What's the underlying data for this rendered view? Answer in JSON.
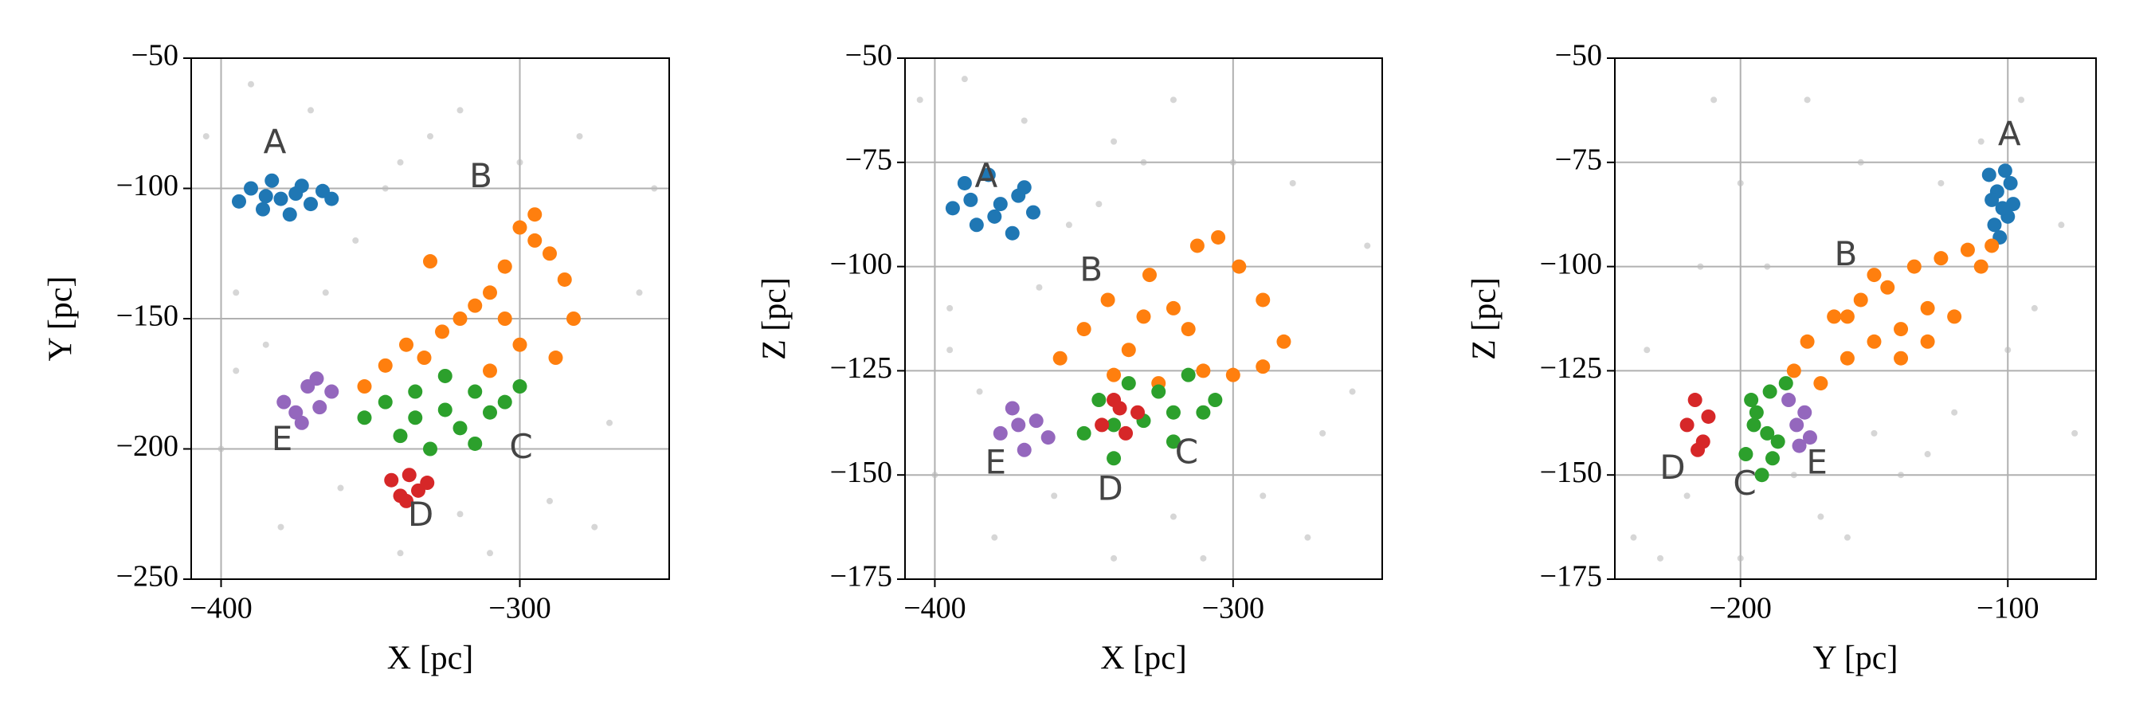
{
  "chart_data": [
    {
      "type": "scatter",
      "xlabel": "X [pc]",
      "ylabel": "Y [pc]",
      "grid": true,
      "xlim": [
        -410,
        -250
      ],
      "ylim": [
        -250,
        -50
      ],
      "xticks": [
        {
          "value": -400,
          "label": "−400"
        },
        {
          "value": -300,
          "label": "−300"
        }
      ],
      "yticks": [
        {
          "value": -250,
          "label": "−250"
        },
        {
          "value": -200,
          "label": "−200"
        },
        {
          "value": -150,
          "label": "−150"
        },
        {
          "value": -100,
          "label": "−100"
        },
        {
          "value": -50,
          "label": "−50"
        }
      ],
      "series": [
        {
          "color": "#bbbbbb",
          "x": [
            -405,
            -395,
            -385,
            -370,
            -355,
            -340,
            -320,
            -300,
            -280,
            -260,
            -400,
            -380,
            -360,
            -340,
            -320,
            -290,
            -270,
            -255,
            -395,
            -365,
            -345,
            -310,
            -275,
            -390,
            -330
          ],
          "y": [
            -80,
            -140,
            -160,
            -70,
            -120,
            -90,
            -70,
            -90,
            -80,
            -140,
            -200,
            -230,
            -215,
            -240,
            -225,
            -220,
            -190,
            -100,
            -170,
            -140,
            -100,
            -240,
            -230,
            -60,
            -80
          ]
        },
        {
          "name": "A",
          "color": "#1f77b4",
          "x": [
            -394,
            -390,
            -386,
            -383,
            -380,
            -377,
            -373,
            -370,
            -366,
            -363,
            -385,
            -375
          ],
          "y": [
            -105,
            -100,
            -108,
            -97,
            -104,
            -110,
            -99,
            -106,
            -101,
            -104,
            -103,
            -102
          ]
        },
        {
          "name": "B",
          "color": "#ff7f0e",
          "x": [
            -352,
            -345,
            -338,
            -332,
            -326,
            -320,
            -315,
            -310,
            -305,
            -300,
            -295,
            -290,
            -285,
            -282,
            -300,
            -310,
            -295,
            -330,
            -288,
            -305
          ],
          "y": [
            -176,
            -168,
            -160,
            -165,
            -155,
            -150,
            -145,
            -140,
            -130,
            -115,
            -120,
            -125,
            -135,
            -150,
            -160,
            -170,
            -110,
            -128,
            -165,
            -150
          ]
        },
        {
          "name": "C",
          "color": "#2ca02c",
          "x": [
            -352,
            -345,
            -340,
            -335,
            -330,
            -325,
            -320,
            -315,
            -310,
            -305,
            -300,
            -335,
            -325,
            -315
          ],
          "y": [
            -188,
            -182,
            -195,
            -178,
            -200,
            -185,
            -192,
            -178,
            -186,
            -182,
            -176,
            -188,
            -172,
            -198
          ]
        },
        {
          "name": "D",
          "color": "#d62728",
          "x": [
            -343,
            -340,
            -337,
            -334,
            -331,
            -338
          ],
          "y": [
            -212,
            -218,
            -210,
            -216,
            -213,
            -220
          ]
        },
        {
          "name": "E",
          "color": "#9467bd",
          "x": [
            -379,
            -375,
            -371,
            -367,
            -363,
            -373,
            -368
          ],
          "y": [
            -182,
            -186,
            -176,
            -184,
            -178,
            -190,
            -173
          ]
        }
      ]
    },
    {
      "type": "scatter",
      "xlabel": "X [pc]",
      "ylabel": "Z [pc]",
      "grid": true,
      "xlim": [
        -410,
        -250
      ],
      "ylim": [
        -175,
        -50
      ],
      "xticks": [
        {
          "value": -400,
          "label": "−400"
        },
        {
          "value": -300,
          "label": "−300"
        }
      ],
      "yticks": [
        {
          "value": -175,
          "label": "−175"
        },
        {
          "value": -150,
          "label": "−150"
        },
        {
          "value": -125,
          "label": "−125"
        },
        {
          "value": -100,
          "label": "−100"
        },
        {
          "value": -75,
          "label": "−75"
        },
        {
          "value": -50,
          "label": "−50"
        }
      ],
      "series": [
        {
          "color": "#bbbbbb",
          "x": [
            -405,
            -395,
            -385,
            -370,
            -355,
            -340,
            -320,
            -300,
            -280,
            -260,
            -400,
            -380,
            -360,
            -340,
            -320,
            -290,
            -270,
            -255,
            -395,
            -365,
            -345,
            -310,
            -275,
            -390,
            -330
          ],
          "y": [
            -60,
            -110,
            -130,
            -65,
            -90,
            -70,
            -60,
            -75,
            -80,
            -130,
            -150,
            -165,
            -155,
            -170,
            -160,
            -155,
            -140,
            -95,
            -120,
            -105,
            -85,
            -170,
            -165,
            -55,
            -75
          ]
        },
        {
          "name": "A",
          "color": "#1f77b4",
          "x": [
            -394,
            -390,
            -386,
            -382,
            -378,
            -374,
            -370,
            -367,
            -388,
            -380,
            -372
          ],
          "y": [
            -86,
            -80,
            -90,
            -78,
            -85,
            -92,
            -81,
            -87,
            -84,
            -88,
            -83
          ]
        },
        {
          "name": "B",
          "color": "#ff7f0e",
          "x": [
            -358,
            -350,
            -342,
            -335,
            -328,
            -320,
            -312,
            -305,
            -298,
            -290,
            -283,
            -340,
            -325,
            -310,
            -300,
            -290,
            -315,
            -330
          ],
          "y": [
            -122,
            -115,
            -108,
            -120,
            -102,
            -110,
            -95,
            -93,
            -100,
            -108,
            -118,
            -126,
            -128,
            -125,
            -126,
            -124,
            -115,
            -112
          ]
        },
        {
          "name": "C",
          "color": "#2ca02c",
          "x": [
            -350,
            -345,
            -340,
            -335,
            -330,
            -325,
            -320,
            -315,
            -310,
            -306,
            -340,
            -320
          ],
          "y": [
            -140,
            -132,
            -146,
            -128,
            -137,
            -130,
            -142,
            -126,
            -135,
            -132,
            -138,
            -135
          ]
        },
        {
          "name": "D",
          "color": "#d62728",
          "x": [
            -344,
            -340,
            -336,
            -332,
            -338
          ],
          "y": [
            -138,
            -132,
            -140,
            -135,
            -134
          ]
        },
        {
          "name": "E",
          "color": "#9467bd",
          "x": [
            -378,
            -374,
            -370,
            -366,
            -362,
            -372
          ],
          "y": [
            -140,
            -134,
            -144,
            -137,
            -141,
            -138
          ]
        }
      ]
    },
    {
      "type": "scatter",
      "xlabel": "Y [pc]",
      "ylabel": "Z [pc]",
      "grid": true,
      "xlim": [
        -247,
        -67
      ],
      "ylim": [
        -175,
        -50
      ],
      "xticks": [
        {
          "value": -200,
          "label": "−200"
        },
        {
          "value": -100,
          "label": "−100"
        }
      ],
      "yticks": [
        {
          "value": -175,
          "label": "−175"
        },
        {
          "value": -150,
          "label": "−150"
        },
        {
          "value": -125,
          "label": "−125"
        },
        {
          "value": -100,
          "label": "−100"
        },
        {
          "value": -75,
          "label": "−75"
        },
        {
          "value": -50,
          "label": "−50"
        }
      ],
      "series": [
        {
          "color": "#bbbbbb",
          "x": [
            -240,
            -230,
            -220,
            -210,
            -200,
            -190,
            -180,
            -170,
            -160,
            -150,
            -140,
            -130,
            -120,
            -110,
            -100,
            -90,
            -80,
            -235,
            -215,
            -175,
            -155,
            -125,
            -95,
            -75,
            -200
          ],
          "y": [
            -165,
            -170,
            -155,
            -60,
            -80,
            -100,
            -150,
            -160,
            -165,
            -140,
            -150,
            -145,
            -135,
            -70,
            -120,
            -110,
            -90,
            -120,
            -100,
            -60,
            -75,
            -80,
            -60,
            -140,
            -170
          ]
        },
        {
          "name": "A",
          "color": "#1f77b4",
          "x": [
            -107,
            -104,
            -101,
            -98,
            -105,
            -100,
            -103,
            -99,
            -106,
            -102
          ],
          "y": [
            -78,
            -82,
            -77,
            -85,
            -90,
            -88,
            -93,
            -80,
            -84,
            -86
          ]
        },
        {
          "name": "B",
          "color": "#ff7f0e",
          "x": [
            -180,
            -175,
            -170,
            -165,
            -160,
            -155,
            -150,
            -145,
            -140,
            -135,
            -130,
            -125,
            -120,
            -115,
            -110,
            -106,
            -160,
            -140,
            -130,
            -150
          ],
          "y": [
            -125,
            -118,
            -128,
            -112,
            -122,
            -108,
            -118,
            -105,
            -115,
            -100,
            -110,
            -98,
            -112,
            -96,
            -100,
            -95,
            -112,
            -122,
            -118,
            -102
          ]
        },
        {
          "name": "C",
          "color": "#2ca02c",
          "x": [
            -198,
            -195,
            -192,
            -189,
            -186,
            -183,
            -194,
            -188,
            -190,
            -196
          ],
          "y": [
            -145,
            -138,
            -150,
            -130,
            -142,
            -128,
            -135,
            -146,
            -140,
            -132
          ]
        },
        {
          "name": "D",
          "color": "#d62728",
          "x": [
            -220,
            -217,
            -214,
            -212,
            -216
          ],
          "y": [
            -138,
            -132,
            -142,
            -136,
            -144
          ]
        },
        {
          "name": "E",
          "color": "#9467bd",
          "x": [
            -182,
            -179,
            -176,
            -174,
            -178
          ],
          "y": [
            -132,
            -138,
            -135,
            -141,
            -143
          ]
        }
      ]
    }
  ]
}
